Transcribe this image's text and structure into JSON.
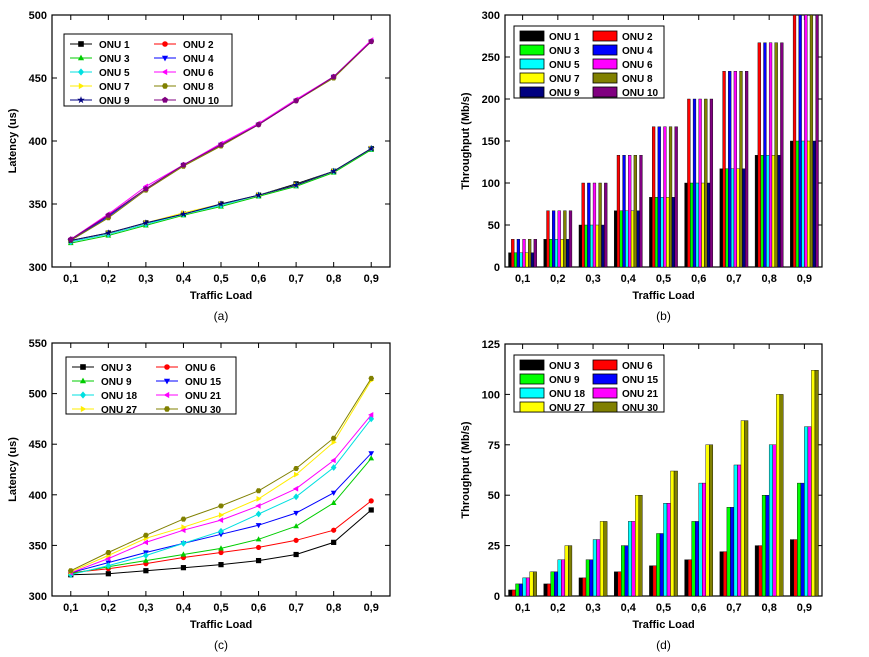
{
  "chart_data": [
    {
      "id": "a",
      "type": "line",
      "caption": "(a)",
      "xlabel": "Traffic Load",
      "ylabel": "Latency (us)",
      "categories": [
        "0,1",
        "0,2",
        "0,3",
        "0,4",
        "0,5",
        "0,6",
        "0,7",
        "0,8",
        "0,9"
      ],
      "ylim": [
        300,
        500
      ],
      "yticks": [
        "300",
        "350",
        "400",
        "450",
        "500"
      ],
      "legend_cols": 2,
      "series": [
        {
          "name": "ONU 1",
          "color": "#000000",
          "marker": "square",
          "values": [
            321,
            327,
            335,
            342,
            350,
            357,
            366,
            376,
            394
          ]
        },
        {
          "name": "ONU 2",
          "color": "#ff0000",
          "marker": "circle",
          "values": [
            321,
            341,
            362,
            381,
            397,
            413,
            432,
            451,
            479
          ]
        },
        {
          "name": "ONU 3",
          "color": "#00cc00",
          "marker": "triangle-up",
          "values": [
            319,
            325,
            333,
            341,
            348,
            356,
            364,
            375,
            393
          ]
        },
        {
          "name": "ONU 4",
          "color": "#0000ff",
          "marker": "triangle-down",
          "values": [
            321,
            340,
            362,
            381,
            397,
            413,
            432,
            451,
            479
          ]
        },
        {
          "name": "ONU 5",
          "color": "#00e0e0",
          "marker": "diamond",
          "values": [
            320,
            326,
            334,
            342,
            349,
            357,
            365,
            376,
            394
          ]
        },
        {
          "name": "ONU 6",
          "color": "#ff00ff",
          "marker": "triangle-left",
          "values": [
            322,
            342,
            364,
            381,
            398,
            414,
            433,
            451,
            480
          ]
        },
        {
          "name": "ONU 7",
          "color": "#ffee00",
          "marker": "triangle-right",
          "values": [
            321,
            327,
            335,
            343,
            350,
            357,
            365,
            376,
            394
          ]
        },
        {
          "name": "ONU 8",
          "color": "#808000",
          "marker": "hexagon",
          "values": [
            321,
            339,
            361,
            380,
            396,
            413,
            432,
            450,
            479
          ]
        },
        {
          "name": "ONU 9",
          "color": "#000080",
          "marker": "star",
          "values": [
            321,
            327,
            335,
            342,
            350,
            357,
            365,
            376,
            394
          ]
        },
        {
          "name": "ONU 10",
          "color": "#800080",
          "marker": "pentagon",
          "values": [
            322,
            341,
            362,
            381,
            397,
            413,
            432,
            451,
            479
          ]
        }
      ]
    },
    {
      "id": "b",
      "type": "bar",
      "caption": "(b)",
      "xlabel": "Traffic Load",
      "ylabel": "Throughput (Mb/s)",
      "categories": [
        "0,1",
        "0,2",
        "0,3",
        "0,4",
        "0,5",
        "0,6",
        "0,7",
        "0,8",
        "0,9"
      ],
      "ylim": [
        0,
        300
      ],
      "yticks": [
        "0",
        "50",
        "100",
        "150",
        "200",
        "250",
        "300"
      ],
      "legend_cols": 2,
      "series": [
        {
          "name": "ONU 1",
          "color": "#000000",
          "values": [
            17,
            33,
            50,
            67,
            83,
            100,
            117,
            133,
            150
          ]
        },
        {
          "name": "ONU 2",
          "color": "#ff0000",
          "values": [
            33,
            67,
            100,
            133,
            167,
            200,
            233,
            267,
            300
          ]
        },
        {
          "name": "ONU 3",
          "color": "#00ff00",
          "values": [
            17,
            33,
            50,
            67,
            83,
            100,
            117,
            133,
            150
          ]
        },
        {
          "name": "ONU 4",
          "color": "#0000ff",
          "values": [
            33,
            67,
            100,
            133,
            167,
            200,
            233,
            267,
            300
          ]
        },
        {
          "name": "ONU 5",
          "color": "#00ffff",
          "values": [
            17,
            33,
            50,
            67,
            83,
            100,
            117,
            133,
            150
          ]
        },
        {
          "name": "ONU 6",
          "color": "#ff00ff",
          "values": [
            33,
            67,
            100,
            133,
            167,
            200,
            233,
            267,
            300
          ]
        },
        {
          "name": "ONU 7",
          "color": "#ffff00",
          "values": [
            17,
            33,
            50,
            67,
            83,
            100,
            117,
            133,
            150
          ]
        },
        {
          "name": "ONU 8",
          "color": "#808000",
          "values": [
            33,
            67,
            100,
            133,
            167,
            200,
            233,
            267,
            300
          ]
        },
        {
          "name": "ONU 9",
          "color": "#000080",
          "values": [
            17,
            33,
            50,
            67,
            83,
            100,
            117,
            133,
            150
          ]
        },
        {
          "name": "ONU 10",
          "color": "#800080",
          "values": [
            33,
            67,
            100,
            133,
            167,
            200,
            233,
            267,
            300
          ]
        }
      ]
    },
    {
      "id": "c",
      "type": "line",
      "caption": "(c)",
      "xlabel": "Traffic Load",
      "ylabel": "Latency (us)",
      "categories": [
        "0,1",
        "0,2",
        "0,3",
        "0,4",
        "0,5",
        "0,6",
        "0,7",
        "0,8",
        "0,9"
      ],
      "ylim": [
        300,
        550
      ],
      "yticks": [
        "300",
        "350",
        "400",
        "450",
        "500",
        "550"
      ],
      "legend_cols": 2,
      "series": [
        {
          "name": "ONU  3",
          "color": "#000000",
          "marker": "square",
          "values": [
            321,
            322,
            325,
            328,
            331,
            335,
            341,
            353,
            385
          ]
        },
        {
          "name": "ONU 6",
          "color": "#ff0000",
          "marker": "circle",
          "values": [
            323,
            327,
            332,
            338,
            343,
            348,
            355,
            365,
            394
          ]
        },
        {
          "name": "ONU  9",
          "color": "#00cc00",
          "marker": "triangle-up",
          "values": [
            322,
            329,
            335,
            341,
            347,
            356,
            369,
            392,
            436
          ]
        },
        {
          "name": "ONU 15",
          "color": "#0000ff",
          "marker": "triangle-down",
          "values": [
            323,
            333,
            343,
            352,
            361,
            370,
            382,
            402,
            441
          ]
        },
        {
          "name": "ONU 18",
          "color": "#00e0e0",
          "marker": "diamond",
          "values": [
            321,
            330,
            340,
            352,
            364,
            381,
            398,
            427,
            475
          ]
        },
        {
          "name": "ONU 21",
          "color": "#ff00ff",
          "marker": "triangle-left",
          "values": [
            323,
            337,
            353,
            365,
            375,
            389,
            406,
            434,
            479
          ]
        },
        {
          "name": "ONU 27",
          "color": "#ffee00",
          "marker": "triangle-right",
          "values": [
            324,
            340,
            357,
            368,
            380,
            396,
            420,
            452,
            513
          ]
        },
        {
          "name": "ONU 30",
          "color": "#808000",
          "marker": "hexagon",
          "values": [
            325,
            343,
            360,
            376,
            389,
            404,
            426,
            456,
            515
          ]
        }
      ]
    },
    {
      "id": "d",
      "type": "bar",
      "caption": "(d)",
      "xlabel": "Traffic Load",
      "ylabel": "Throughput (Mb/s)",
      "categories": [
        "0,1",
        "0,2",
        "0,3",
        "0,4",
        "0,5",
        "0,6",
        "0,7",
        "0,8",
        "0,9"
      ],
      "ylim": [
        0,
        125
      ],
      "yticks": [
        "0",
        "25",
        "50",
        "75",
        "100",
        "125"
      ],
      "legend_cols": 2,
      "series": [
        {
          "name": "ONU  3",
          "color": "#000000",
          "values": [
            3,
            6,
            9,
            12,
            15,
            18,
            22,
            25,
            28
          ]
        },
        {
          "name": "ONU 6",
          "color": "#ff0000",
          "values": [
            3,
            6,
            9,
            12,
            15,
            18,
            22,
            25,
            28
          ]
        },
        {
          "name": "ONU  9",
          "color": "#00ff00",
          "values": [
            6,
            12,
            18,
            25,
            31,
            37,
            44,
            50,
            56
          ]
        },
        {
          "name": "ONU 15",
          "color": "#0000ff",
          "values": [
            6,
            12,
            18,
            25,
            31,
            37,
            44,
            50,
            56
          ]
        },
        {
          "name": "ONU 18",
          "color": "#00ffff",
          "values": [
            9,
            18,
            28,
            37,
            46,
            56,
            65,
            75,
            84
          ]
        },
        {
          "name": "ONU 21",
          "color": "#ff00ff",
          "values": [
            9,
            18,
            28,
            37,
            46,
            56,
            65,
            75,
            84
          ]
        },
        {
          "name": "ONU 27",
          "color": "#ffff00",
          "values": [
            12,
            25,
            37,
            50,
            62,
            75,
            87,
            100,
            112
          ]
        },
        {
          "name": "ONU 30",
          "color": "#808000",
          "values": [
            12,
            25,
            37,
            50,
            62,
            75,
            87,
            100,
            112
          ]
        }
      ]
    }
  ]
}
